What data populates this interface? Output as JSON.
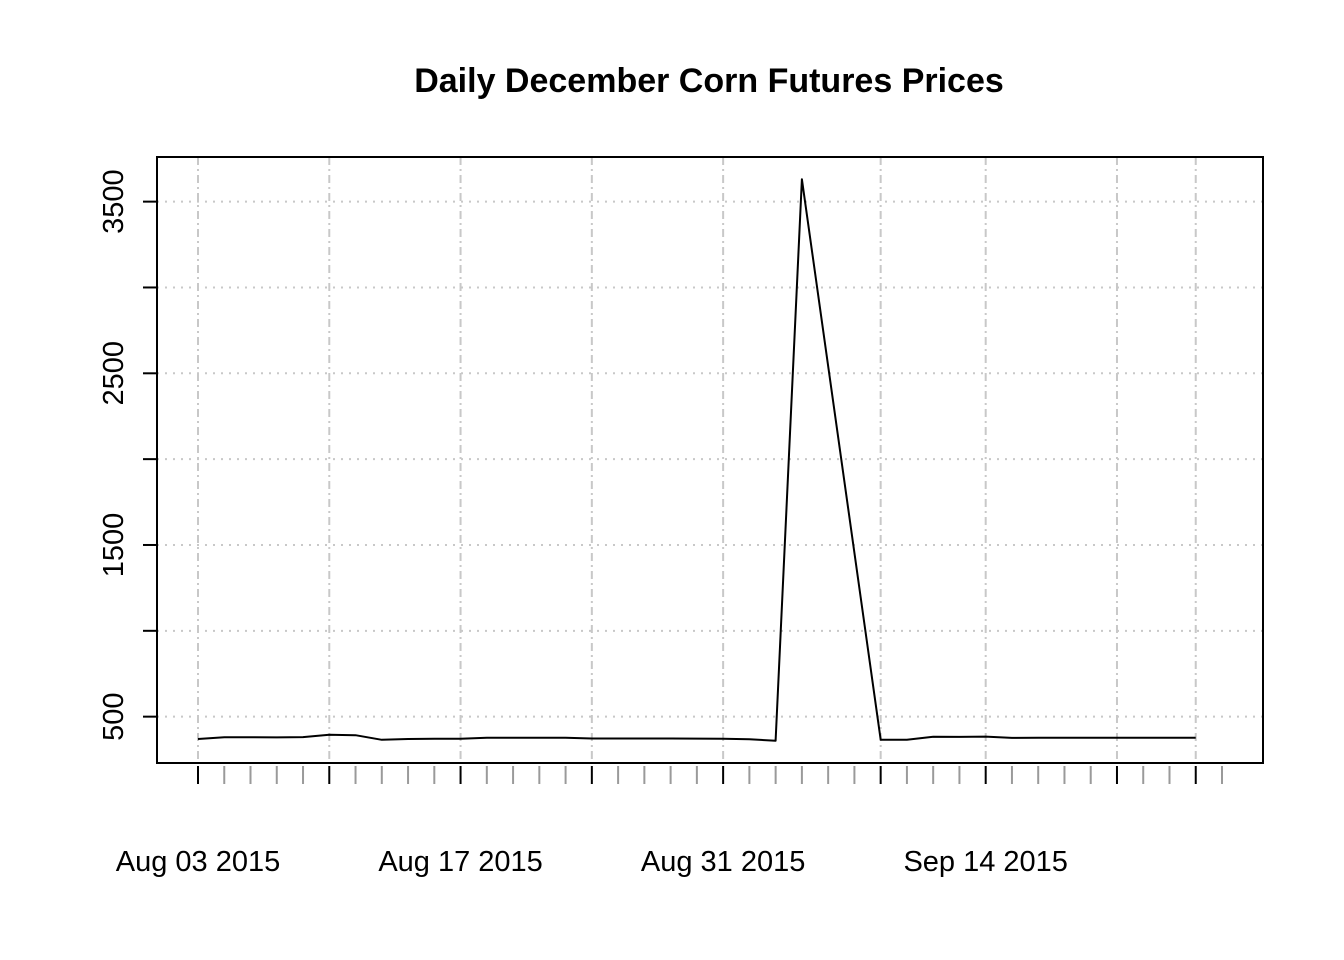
{
  "chart_data": {
    "type": "line",
    "title": "Daily December Corn Futures Prices",
    "xlabel": "",
    "ylabel": "",
    "x_start": "2015-08-03",
    "x_end": "2015-09-25",
    "x_tick_labels": [
      {
        "date": "2015-08-03",
        "label": "Aug 03 2015"
      },
      {
        "date": "2015-08-17",
        "label": "Aug 17 2015"
      },
      {
        "date": "2015-08-31",
        "label": "Aug 31 2015"
      },
      {
        "date": "2015-09-14",
        "label": "Sep 14 2015"
      }
    ],
    "x_major_ticks": [
      "2015-08-03",
      "2015-08-10",
      "2015-08-17",
      "2015-08-24",
      "2015-08-31",
      "2015-09-08",
      "2015-09-14",
      "2015-09-21",
      "2015-09-24"
    ],
    "y_ticks": [
      500,
      1500,
      2500,
      3500
    ],
    "ylim": [
      230,
      3760
    ],
    "grid": true,
    "series": [
      {
        "color": "#000000",
        "points": [
          {
            "x": "2015-08-03",
            "y": 370
          },
          {
            "x": "2015-08-04",
            "y": 380
          },
          {
            "x": "2015-08-05",
            "y": 380
          },
          {
            "x": "2015-08-06",
            "y": 379
          },
          {
            "x": "2015-08-07",
            "y": 381
          },
          {
            "x": "2015-08-10",
            "y": 395
          },
          {
            "x": "2015-08-11",
            "y": 392
          },
          {
            "x": "2015-08-12",
            "y": 365
          },
          {
            "x": "2015-08-13",
            "y": 370
          },
          {
            "x": "2015-08-14",
            "y": 371
          },
          {
            "x": "2015-08-17",
            "y": 371
          },
          {
            "x": "2015-08-18",
            "y": 377
          },
          {
            "x": "2015-08-19",
            "y": 377
          },
          {
            "x": "2015-08-20",
            "y": 377
          },
          {
            "x": "2015-08-21",
            "y": 377
          },
          {
            "x": "2015-08-24",
            "y": 373
          },
          {
            "x": "2015-08-25",
            "y": 373
          },
          {
            "x": "2015-08-26",
            "y": 373
          },
          {
            "x": "2015-08-27",
            "y": 373
          },
          {
            "x": "2015-08-28",
            "y": 372
          },
          {
            "x": "2015-08-31",
            "y": 371
          },
          {
            "x": "2015-09-01",
            "y": 368
          },
          {
            "x": "2015-09-02",
            "y": 360
          },
          {
            "x": "2015-09-03",
            "y": 3630
          },
          {
            "x": "2015-09-08",
            "y": 365
          },
          {
            "x": "2015-09-09",
            "y": 366
          },
          {
            "x": "2015-09-10",
            "y": 383
          },
          {
            "x": "2015-09-11",
            "y": 382
          },
          {
            "x": "2015-09-14",
            "y": 384
          },
          {
            "x": "2015-09-15",
            "y": 376
          },
          {
            "x": "2015-09-16",
            "y": 377
          },
          {
            "x": "2015-09-17",
            "y": 377
          },
          {
            "x": "2015-09-18",
            "y": 377
          },
          {
            "x": "2015-09-21",
            "y": 377
          },
          {
            "x": "2015-09-22",
            "y": 377
          },
          {
            "x": "2015-09-23",
            "y": 377
          },
          {
            "x": "2015-09-24",
            "y": 377
          }
        ]
      }
    ]
  }
}
